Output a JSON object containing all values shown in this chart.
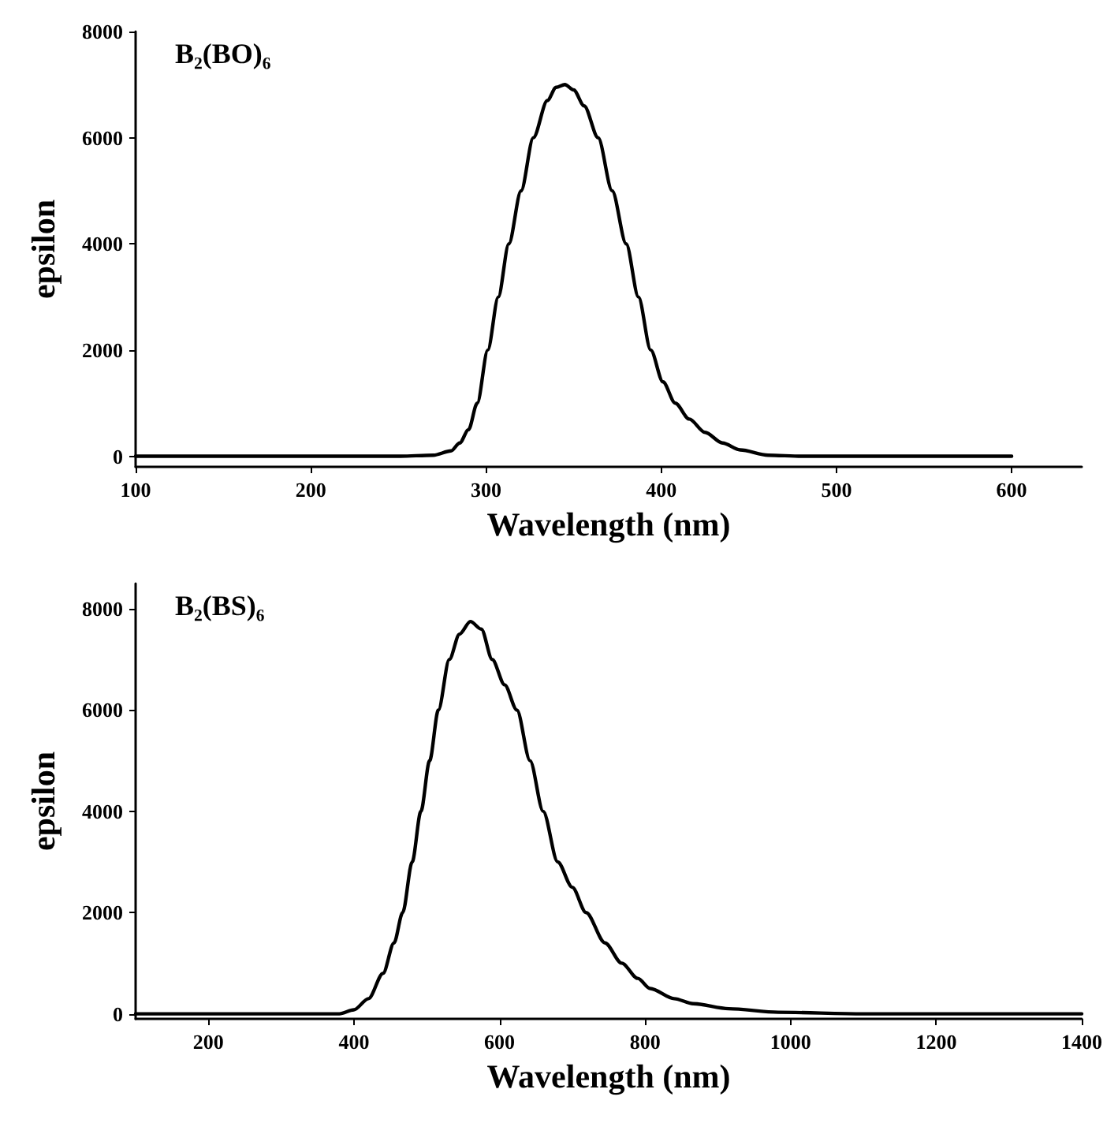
{
  "chart_data": [
    {
      "type": "line",
      "title": "B₂(BO)₆",
      "xlabel": "Wavelength (nm)",
      "ylabel": "epsilon",
      "xlim": [
        100,
        640
      ],
      "xticks": [
        100,
        200,
        300,
        400,
        500,
        600
      ],
      "ylim": [
        -200,
        8000
      ],
      "yticks": [
        0,
        2000,
        4000,
        6000,
        8000
      ],
      "grid": false,
      "marker": "none",
      "line_style": "solid",
      "series": [
        {
          "color": "#000000",
          "x": [
            100,
            150,
            200,
            250,
            270,
            280,
            285,
            290,
            295,
            301,
            307,
            313,
            320,
            327,
            335,
            340,
            345,
            350,
            356,
            364,
            372,
            380,
            387,
            394,
            401,
            408,
            416,
            425,
            435,
            445,
            461,
            480,
            520,
            560,
            600
          ],
          "values": [
            0,
            0,
            0,
            0,
            20,
            100,
            250,
            500,
            1000,
            2000,
            3000,
            4000,
            5000,
            6000,
            6700,
            6950,
            7000,
            6900,
            6600,
            6000,
            5000,
            4000,
            3000,
            2000,
            1400,
            1000,
            700,
            450,
            250,
            120,
            20,
            0,
            0,
            0,
            0
          ]
        }
      ]
    },
    {
      "type": "line",
      "title": "B₂(BS)₆",
      "xlabel": "Wavelength (nm)",
      "ylabel": "epsilon",
      "xlim": [
        100,
        1400
      ],
      "xticks": [
        200,
        400,
        600,
        800,
        1000,
        1200,
        1400
      ],
      "ylim": [
        -100,
        8500
      ],
      "yticks": [
        0,
        2000,
        4000,
        6000,
        8000
      ],
      "grid": false,
      "marker": "none",
      "line_style": "solid",
      "series": [
        {
          "color": "#000000",
          "x": [
            100,
            200,
            300,
            380,
            400,
            420,
            440,
            455,
            467,
            480,
            492,
            504,
            516,
            531,
            545,
            560,
            575,
            590,
            607,
            624,
            642,
            660,
            680,
            700,
            719,
            745,
            768,
            790,
            807,
            840,
            866,
            915,
            983,
            1100,
            1200,
            1300,
            1400
          ],
          "values": [
            0,
            0,
            0,
            0,
            80,
            300,
            800,
            1400,
            2000,
            3000,
            4000,
            5000,
            6000,
            7000,
            7500,
            7750,
            7600,
            7000,
            6500,
            6000,
            5000,
            4000,
            3000,
            2500,
            2000,
            1400,
            1000,
            700,
            500,
            300,
            200,
            100,
            30,
            0,
            0,
            0,
            0
          ]
        }
      ]
    }
  ]
}
